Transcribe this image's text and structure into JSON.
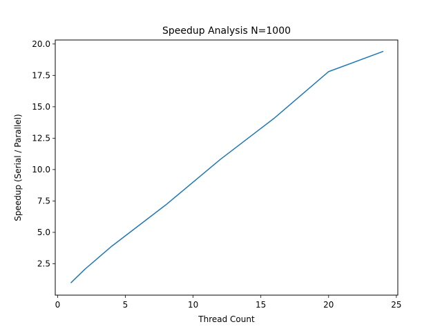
{
  "chart_data": {
    "type": "line",
    "title": "Speedup Analysis N=1000",
    "xlabel": "Thread Count",
    "ylabel": "Speedup (Serial / Parallel)",
    "xlim": [
      0,
      25
    ],
    "ylim": [
      0,
      20
    ],
    "xticks": [
      0,
      5,
      10,
      15,
      20,
      25
    ],
    "yticks": [
      2.5,
      5.0,
      7.5,
      10.0,
      12.5,
      15.0,
      17.5,
      20.0
    ],
    "grid": false,
    "series": [
      {
        "color": "#1f77b4",
        "x": [
          1,
          2,
          4,
          8,
          12,
          16,
          20,
          24
        ],
        "y": [
          1.0,
          2.05,
          3.9,
          7.2,
          10.8,
          14.1,
          17.8,
          19.4
        ]
      }
    ]
  }
}
